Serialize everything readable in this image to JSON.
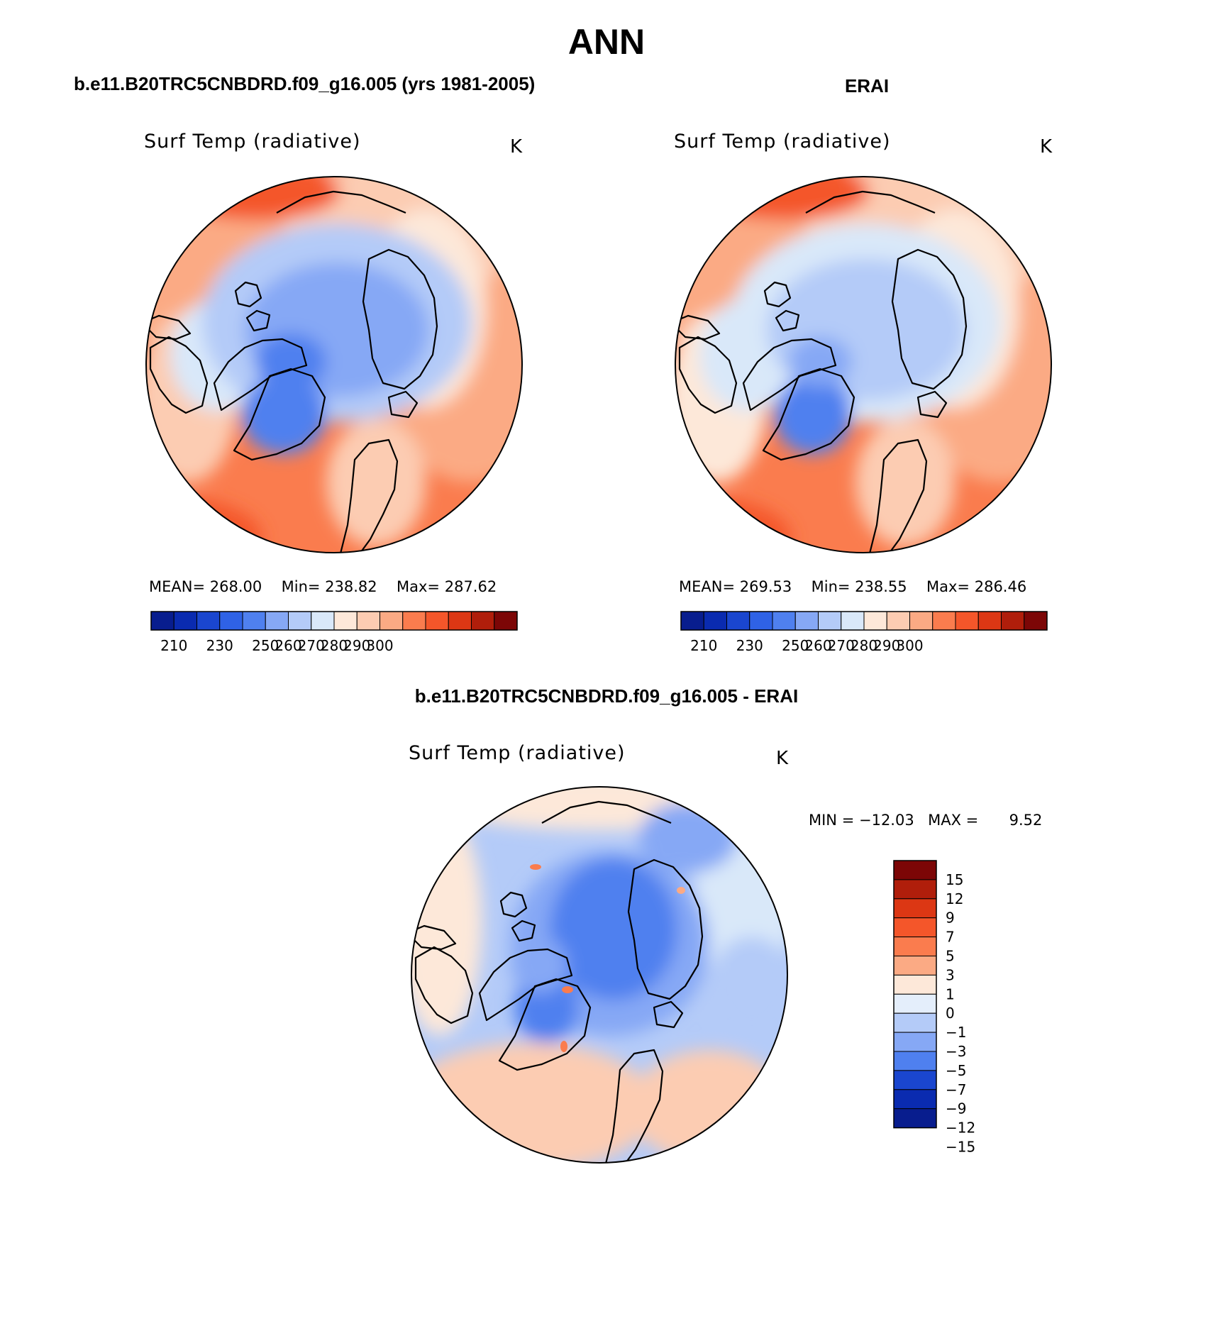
{
  "figure_title": "ANN",
  "panels": [
    {
      "heading": "b.e11.B20TRC5CNBDRD.f09_g16.005 (yrs 1981-2005)",
      "variable": "Surf Temp (radiative)",
      "units": "K",
      "stats": {
        "mean_label": "MEAN=",
        "mean": "268.00",
        "min_label": "Min=",
        "min": "238.82",
        "max_label": "Max=",
        "max": "287.62"
      },
      "colorbar": {
        "colors": [
          "#081d8e",
          "#0a2bb0",
          "#1a46cf",
          "#2f62e6",
          "#4f80ef",
          "#86a8f5",
          "#b4cbf8",
          "#d9e8f9",
          "#fde8d9",
          "#fcccb2",
          "#fbaa84",
          "#fa7c4e",
          "#f4562a",
          "#dc3714",
          "#b01e0b",
          "#7c0606"
        ],
        "tick_labels": [
          "210",
          "230",
          "250",
          "260",
          "270",
          "280",
          "290",
          "300"
        ]
      }
    },
    {
      "heading": "ERAI",
      "variable": "Surf Temp (radiative)",
      "units": "K",
      "stats": {
        "mean_label": "MEAN=",
        "mean": "269.53",
        "min_label": "Min=",
        "min": "238.55",
        "max_label": "Max=",
        "max": "286.46"
      },
      "colorbar": {
        "colors": [
          "#081d8e",
          "#0a2bb0",
          "#1a46cf",
          "#2f62e6",
          "#4f80ef",
          "#86a8f5",
          "#b4cbf8",
          "#d9e8f9",
          "#fde8d9",
          "#fcccb2",
          "#fbaa84",
          "#fa7c4e",
          "#f4562a",
          "#dc3714",
          "#b01e0b",
          "#7c0606"
        ],
        "tick_labels": [
          "210",
          "230",
          "250",
          "260",
          "270",
          "280",
          "290",
          "300"
        ]
      }
    },
    {
      "heading": "b.e11.B20TRC5CNBDRD.f09_g16.005 - ERAI",
      "variable": "Surf Temp (radiative)",
      "units": "K",
      "stats": {
        "min_label": "MIN =",
        "min": "−12.03",
        "max_label": "MAX =",
        "max": "9.52"
      },
      "colorbar": {
        "colors": [
          "#7c0606",
          "#b01e0b",
          "#dc3714",
          "#f4562a",
          "#fa7c4e",
          "#fbaa84",
          "#fde8d9",
          "#e4eefb",
          "#b4cbf8",
          "#86a8f5",
          "#4f80ef",
          "#1a46cf",
          "#0a2bb0",
          "#081d8e"
        ],
        "tick_labels": [
          "15",
          "12",
          "9",
          "7",
          "5",
          "3",
          "1",
          "0",
          "−1",
          "−3",
          "−5",
          "−7",
          "−9",
          "−12",
          "−15"
        ]
      }
    }
  ]
}
